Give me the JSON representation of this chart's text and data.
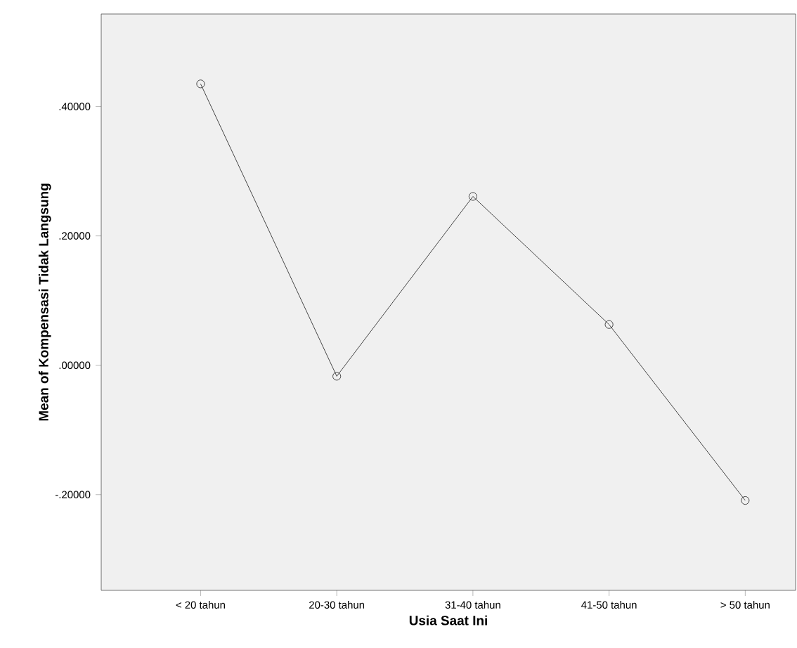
{
  "chart_data": {
    "type": "line",
    "xlabel": "Usia Saat Ini",
    "ylabel": "Mean of Kompensasi Tidak Langsung",
    "categories": [
      "< 20 tahun",
      "20-30 tahun",
      "31-40 tahun",
      "41-50 tahun",
      "> 50 tahun"
    ],
    "values": [
      0.435,
      -0.017,
      0.261,
      0.063,
      -0.209
    ],
    "color": "#1a1a1a",
    "marker": "circle",
    "line_style": "solid",
    "ylim": [
      -0.348,
      0.543
    ],
    "yticks": [
      {
        "value": -0.2,
        "label": "-.20000"
      },
      {
        "value": 0.0,
        "label": ".00000"
      },
      {
        "value": 0.2,
        "label": ".20000"
      },
      {
        "value": 0.4,
        "label": ".40000"
      }
    ]
  }
}
